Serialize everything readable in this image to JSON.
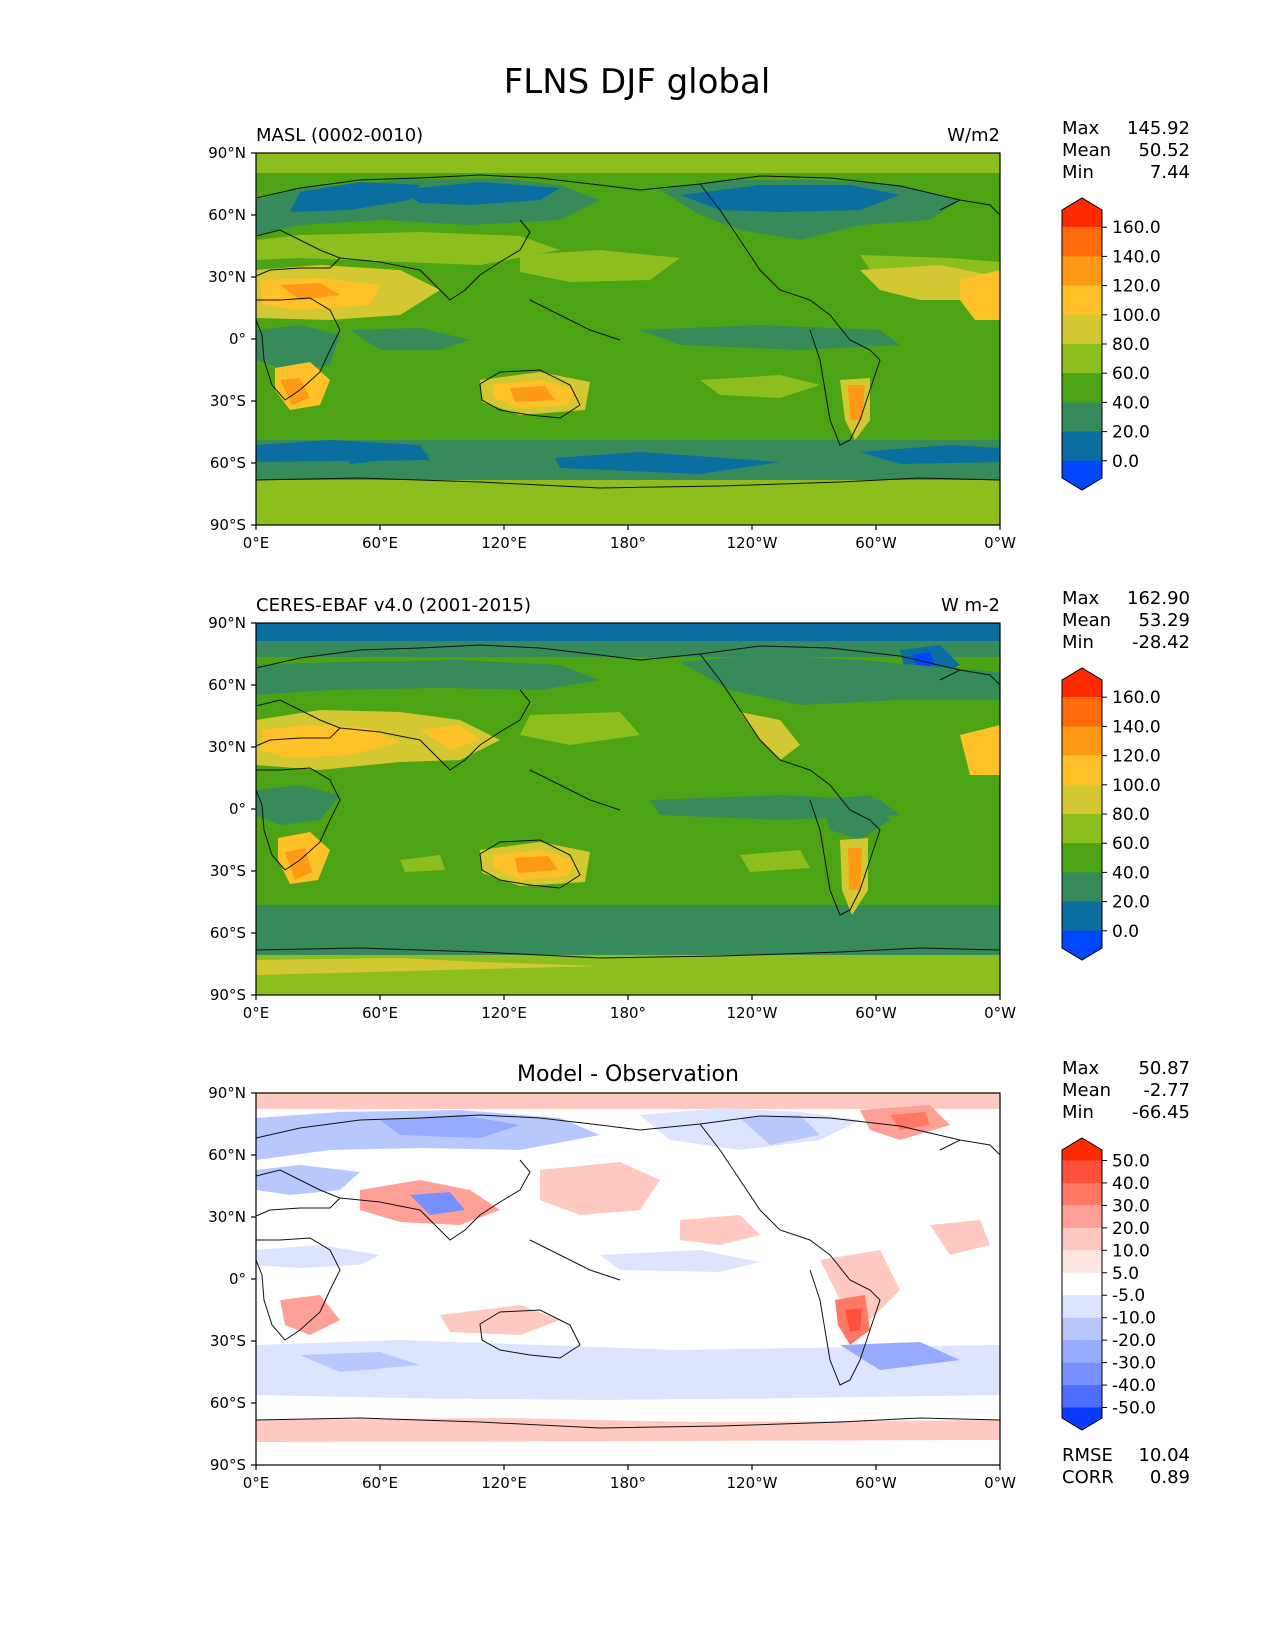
{
  "title": "FLNS DJF global",
  "axis": {
    "lat_labels": [
      "90°N",
      "60°N",
      "30°N",
      "0°",
      "30°S",
      "60°S",
      "90°S"
    ],
    "lon_labels": [
      "0°E",
      "60°E",
      "120°E",
      "180°",
      "120°W",
      "60°W",
      "0°W"
    ]
  },
  "panels": [
    {
      "left_title": "MASL (0002-0010)",
      "center_title": "",
      "units": "W/m2",
      "stats": {
        "max_label": "Max",
        "max": "145.92",
        "mean_label": "Mean",
        "mean": "50.52",
        "min_label": "Min",
        "min": "7.44"
      },
      "colorbar": {
        "labels": [
          "160.0",
          "140.0",
          "120.0",
          "100.0",
          "80.0",
          "60.0",
          "40.0",
          "20.0",
          "0.0"
        ],
        "colors": [
          "#ff2a00",
          "#ff6a0a",
          "#ff9a14",
          "#ffc128",
          "#d4c832",
          "#8cbe1e",
          "#4ca414",
          "#378a5a",
          "#0a6ea0",
          "#0046ff"
        ]
      }
    },
    {
      "left_title": "CERES-EBAF v4.0 (2001-2015)",
      "center_title": "",
      "units": "W m-2",
      "stats": {
        "max_label": "Max",
        "max": "162.90",
        "mean_label": "Mean",
        "mean": "53.29",
        "min_label": "Min",
        "min": "-28.42"
      },
      "colorbar": {
        "labels": [
          "160.0",
          "140.0",
          "120.0",
          "100.0",
          "80.0",
          "60.0",
          "40.0",
          "20.0",
          "0.0"
        ],
        "colors": [
          "#ff2a00",
          "#ff6a0a",
          "#ff9a14",
          "#ffc128",
          "#d4c832",
          "#8cbe1e",
          "#4ca414",
          "#378a5a",
          "#0a6ea0",
          "#0046ff"
        ]
      }
    },
    {
      "left_title": "",
      "center_title": "Model - Observation",
      "units": "",
      "stats": {
        "max_label": "Max",
        "max": "50.87",
        "mean_label": "Mean",
        "mean": "-2.77",
        "min_label": "Min",
        "min": "-66.45"
      },
      "colorbar": {
        "labels": [
          "50.0",
          "40.0",
          "30.0",
          "20.0",
          "10.0",
          "5.0",
          "-5.0",
          "-10.0",
          "-20.0",
          "-30.0",
          "-40.0",
          "-50.0"
        ],
        "colors": [
          "#ff2a00",
          "#ff503c",
          "#ff7864",
          "#ffa096",
          "#ffc8c0",
          "#ffe6e2",
          "#ffffff",
          "#dce4ff",
          "#b8c8ff",
          "#96aaff",
          "#7890ff",
          "#4e6eff",
          "#0a3cff"
        ]
      },
      "footer": {
        "rmse_label": "RMSE",
        "rmse": "10.04",
        "corr_label": "CORR",
        "corr": "0.89"
      }
    }
  ]
}
